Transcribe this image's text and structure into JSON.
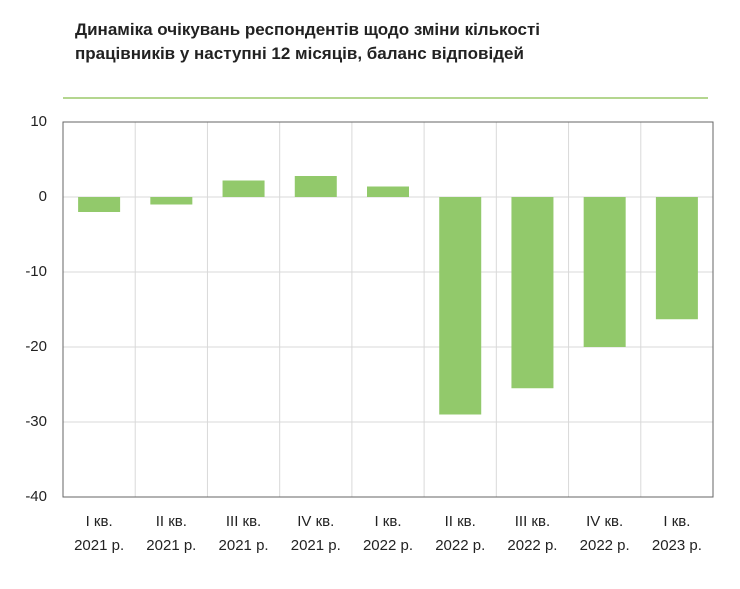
{
  "chart_data": {
    "type": "bar",
    "title": "Динаміка очікувань респондентів щодо зміни кількості працівників у наступні 12 місяців, баланс відповідей",
    "categories": [
      [
        "I кв.",
        "2021 р."
      ],
      [
        "II кв.",
        "2021 р."
      ],
      [
        "III кв.",
        "2021 р."
      ],
      [
        "IV кв.",
        "2021 р."
      ],
      [
        "I кв.",
        "2022 р."
      ],
      [
        "II кв.",
        "2022 р."
      ],
      [
        "III кв.",
        "2022 р."
      ],
      [
        "IV кв.",
        "2022 р."
      ],
      [
        "I кв.",
        "2023 р."
      ]
    ],
    "values": [
      -2,
      -1,
      2.2,
      2.8,
      1.4,
      -29,
      -25.5,
      -20,
      -16.3
    ],
    "color": "#92c96b",
    "ylim": [
      -40,
      10
    ],
    "yticks": [
      -40,
      -30,
      -20,
      -10,
      0,
      10
    ],
    "grid": true
  }
}
